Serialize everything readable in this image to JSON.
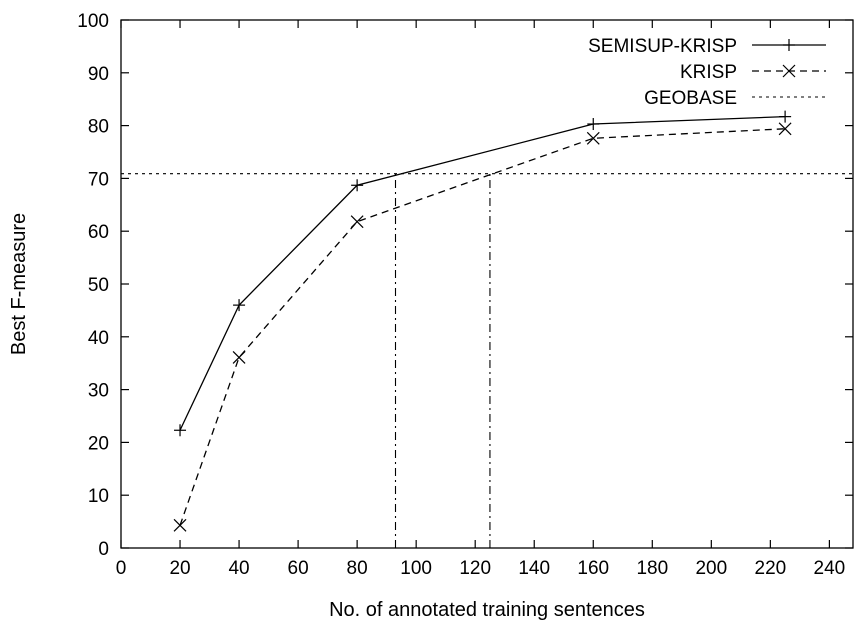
{
  "chart_data": {
    "type": "line",
    "xlabel": "No. of annotated training sentences",
    "ylabel": "Best F-measure",
    "xlim": [
      0,
      248
    ],
    "ylim": [
      0,
      100
    ],
    "xticks": [
      0,
      20,
      40,
      60,
      80,
      100,
      120,
      140,
      160,
      180,
      200,
      220,
      240
    ],
    "yticks": [
      0,
      10,
      20,
      30,
      40,
      50,
      60,
      70,
      80,
      90,
      100
    ],
    "grid": false,
    "legend_position": "top-right",
    "series": [
      {
        "name": "SEMISUP-KRISP",
        "style": "solid",
        "marker": "plus",
        "color": "#000000",
        "points": [
          [
            20,
            22.3
          ],
          [
            40,
            46.0
          ],
          [
            80,
            68.7
          ],
          [
            160,
            80.3
          ],
          [
            225,
            81.7
          ]
        ]
      },
      {
        "name": "KRISP",
        "style": "dashed",
        "marker": "x",
        "color": "#000000",
        "points": [
          [
            20,
            4.3
          ],
          [
            40,
            36.1
          ],
          [
            80,
            61.8
          ],
          [
            160,
            77.6
          ],
          [
            225,
            79.4
          ]
        ]
      },
      {
        "name": "GEOBASE",
        "style": "dotted",
        "marker": "none",
        "color": "#000000",
        "constant_y": 70.9
      }
    ],
    "annotations": [
      {
        "type": "vertical-line",
        "style": "dash-dot",
        "x": 93,
        "y_from": 0,
        "y_to": 70.9
      },
      {
        "type": "vertical-line",
        "style": "dash-dot",
        "x": 125,
        "y_from": 0,
        "y_to": 70.9
      }
    ]
  }
}
